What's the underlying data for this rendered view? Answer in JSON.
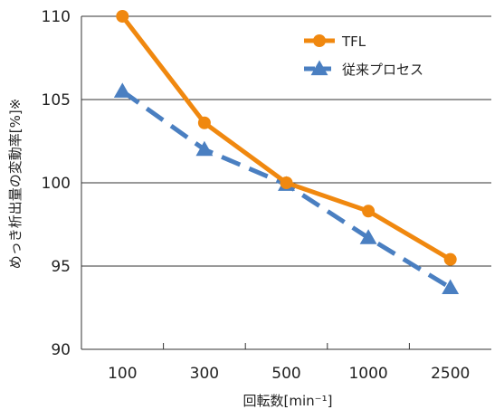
{
  "chart_data": {
    "type": "line",
    "categories": [
      "100",
      "300",
      "500",
      "1000",
      "2500"
    ],
    "ylim": [
      90,
      110
    ],
    "yticks": [
      "90",
      "95",
      "100",
      "105",
      "110"
    ],
    "xlabel": "回転数[min⁻¹]",
    "ylabel": "めっき析出量の変動率[%]※",
    "grid": "horizontal",
    "legend_position": "top-right",
    "series": [
      {
        "name": "TFL",
        "values": [
          110.0,
          103.6,
          100.0,
          98.3,
          95.4
        ],
        "color": "#F0880F",
        "marker": "circle",
        "line": "solid"
      },
      {
        "name": "従来プロセス",
        "values": [
          105.5,
          102.0,
          99.9,
          96.7,
          93.7
        ],
        "color": "#4A7FC1",
        "marker": "triangle",
        "line": "dashed"
      }
    ]
  }
}
